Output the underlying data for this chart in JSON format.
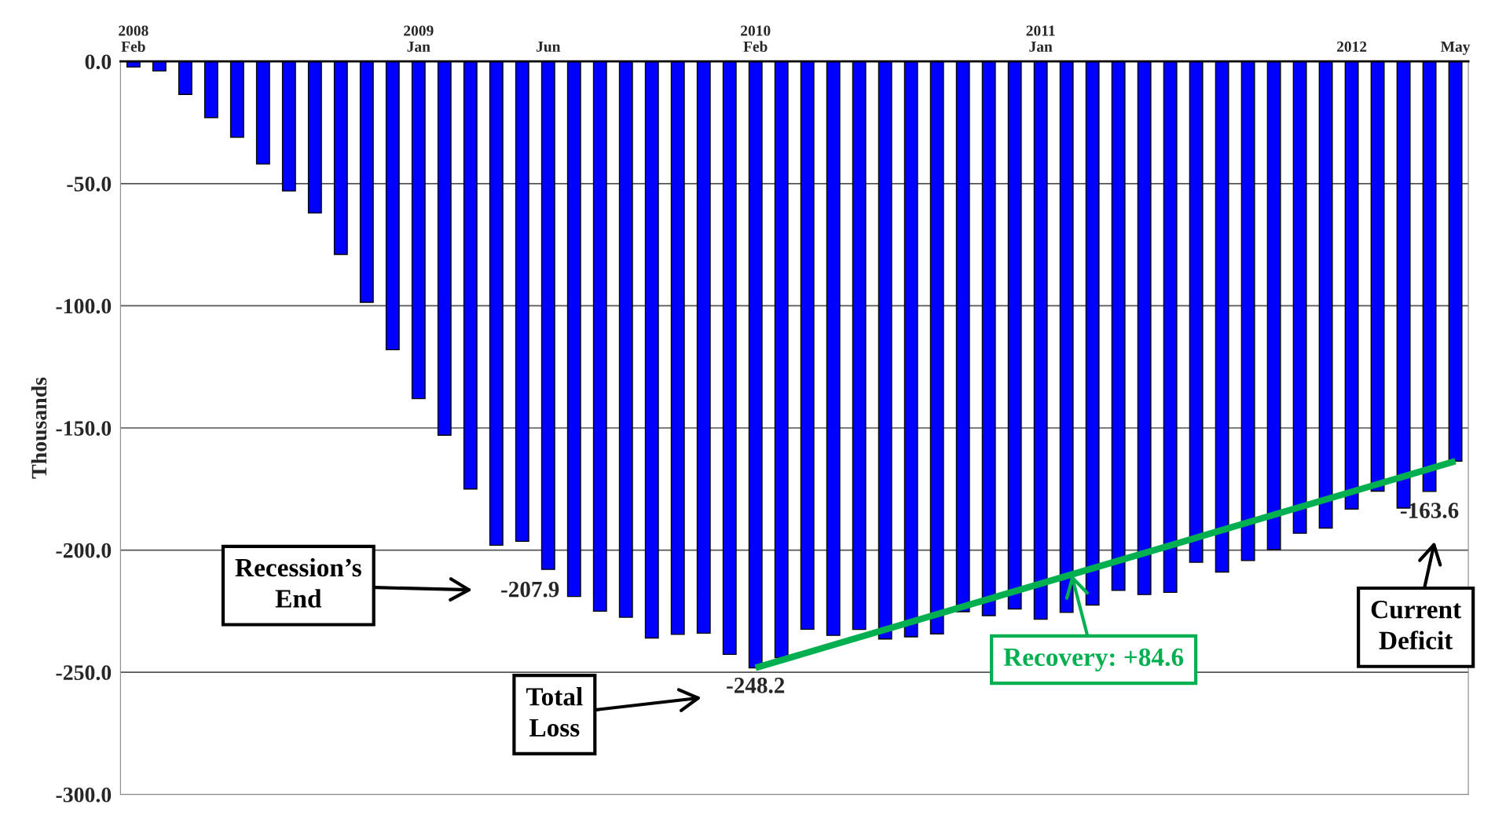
{
  "chart_data": {
    "type": "bar",
    "ylabel": "Thousands",
    "categories": [
      "2008\nFeb",
      null,
      null,
      null,
      null,
      null,
      null,
      null,
      null,
      null,
      null,
      "2009\nJan",
      null,
      null,
      null,
      null,
      "Jun",
      null,
      null,
      null,
      null,
      null,
      null,
      null,
      "2010\nFeb",
      null,
      null,
      null,
      null,
      null,
      null,
      null,
      null,
      null,
      null,
      "2011\nJan",
      null,
      null,
      null,
      null,
      null,
      null,
      null,
      null,
      null,
      null,
      null,
      "2012",
      null,
      null,
      null,
      "May"
    ],
    "series": [
      {
        "color": "#0000ff",
        "values": [
          -2.3,
          -3.9,
          -13.5,
          -23,
          -31,
          -42,
          -53,
          -62,
          -79,
          -98.6,
          -118,
          -138,
          -153,
          -175,
          -198,
          -196.4,
          -207.9,
          -219,
          -225,
          -227.5,
          -236,
          -234.5,
          -234,
          -242.7,
          -248.2,
          -244,
          -232.4,
          -234.9,
          -232.5,
          -236.4,
          -235.5,
          -234.3,
          -225.2,
          -226.8,
          -224.1,
          -228.3,
          -225.5,
          -222.5,
          -216.5,
          -218.2,
          -217.3,
          -205,
          -209,
          -204.3,
          -199.8,
          -193.1,
          -191,
          -183.2,
          -175.9,
          -182.8,
          -176,
          -163.6
        ],
        "value_labels": [
          null,
          null,
          null,
          null,
          null,
          null,
          null,
          null,
          null,
          null,
          null,
          null,
          null,
          null,
          null,
          null,
          "-207.9",
          null,
          null,
          null,
          null,
          null,
          null,
          null,
          "-248.2",
          null,
          null,
          null,
          null,
          null,
          null,
          null,
          null,
          null,
          null,
          null,
          null,
          null,
          null,
          null,
          null,
          null,
          null,
          null,
          null,
          null,
          null,
          null,
          null,
          null,
          null,
          "-163.6"
        ]
      },
      {
        "type": "line",
        "color": "#00b050",
        "values": [
          null,
          null,
          null,
          null,
          null,
          null,
          null,
          null,
          null,
          null,
          null,
          null,
          null,
          null,
          null,
          null,
          null,
          null,
          null,
          null,
          null,
          null,
          null,
          null,
          -248.2,
          null,
          null,
          null,
          null,
          null,
          null,
          null,
          null,
          null,
          null,
          null,
          null,
          null,
          null,
          null,
          null,
          null,
          null,
          null,
          null,
          null,
          null,
          null,
          null,
          null,
          null,
          -163.6
        ]
      }
    ],
    "ylim": [
      -300,
      0
    ],
    "yticks": [
      {
        "value": 0,
        "label": "0.0"
      },
      {
        "value": -50,
        "label": "-50.0"
      },
      {
        "value": -100,
        "label": "-100.0"
      },
      {
        "value": -150,
        "label": "-150.0"
      },
      {
        "value": -200,
        "label": "-200.0"
      },
      {
        "value": -250,
        "label": "-250.0"
      },
      {
        "value": -300,
        "label": "-300.0"
      }
    ],
    "grid": "y",
    "annotations": [
      "Recession’s\nEnd",
      "Total\nLoss",
      "Current\nDeficit",
      {
        "text": "Recovery: +84.6",
        "y": -210
      }
    ]
  }
}
